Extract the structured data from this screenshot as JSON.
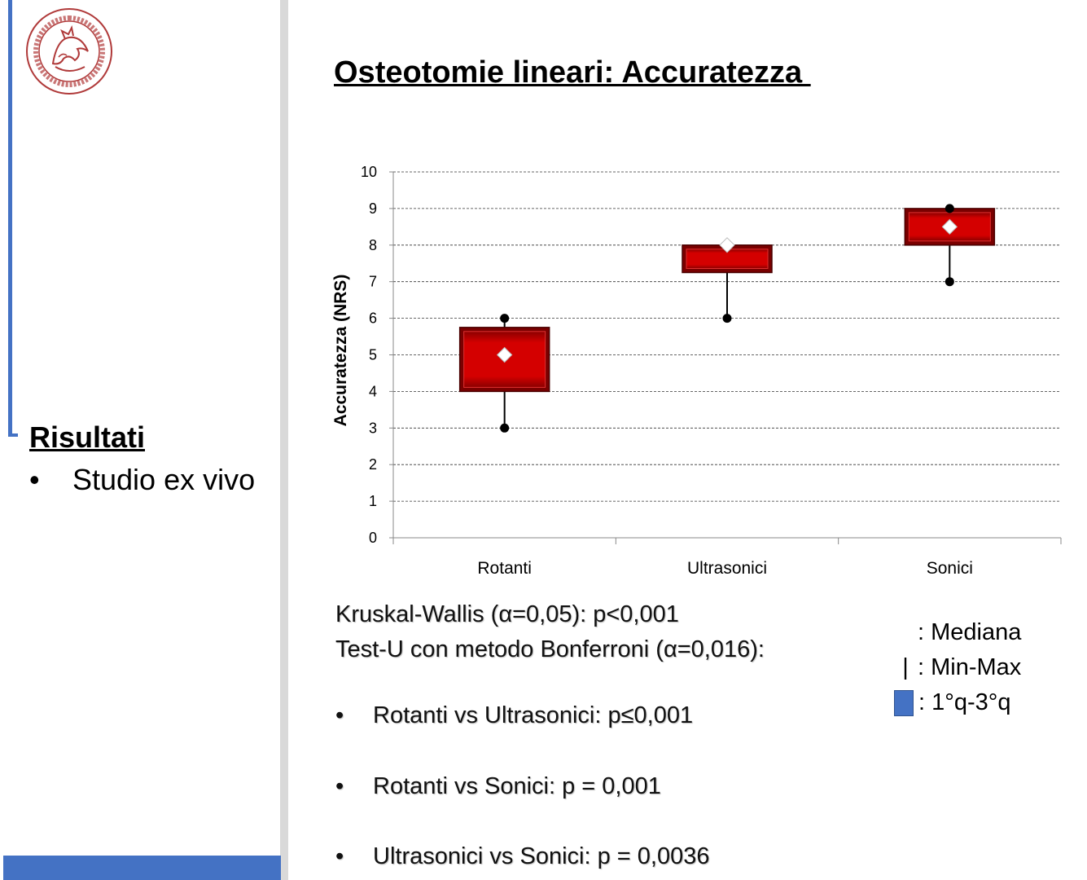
{
  "slide": {
    "title": "Osteotomie lineari: Accuratezza "
  },
  "sidebar": {
    "section_title": "Risultati",
    "bullet": "Studio ex vivo",
    "bullet_symbol": "•",
    "accent_color": "#4472c4"
  },
  "stats": {
    "line1": "Kruskal-Wallis (α=0,05): p<0,001",
    "line2": "Test-U  con metodo Bonferroni (α=0,016):",
    "bullet_symbol": "•",
    "comparisons": [
      "Rotanti vs Ultrasonici: p≤0,001",
      "Rotanti vs Sonici: p = 0,001",
      "Ultrasonici vs Sonici: p = 0,0036"
    ]
  },
  "legend": {
    "median_label": ": Mediana",
    "minmax_symbol": "|",
    "minmax_label": ": Min-Max",
    "quartile_label": ": 1°q-3°q",
    "quartile_color": "#4472c4"
  },
  "chart_data": {
    "type": "boxplot",
    "ylabel": "Accuratezza (NRS)",
    "ylim": [
      0,
      10
    ],
    "yticks": [
      0,
      1,
      2,
      3,
      4,
      5,
      6,
      7,
      8,
      9,
      10
    ],
    "grid": true,
    "categories": [
      "Rotanti",
      "Ultrasonici",
      "Sonici"
    ],
    "boxes": [
      {
        "min": 3,
        "q1": 4,
        "median": 5,
        "q3": 5.75,
        "max": 6
      },
      {
        "min": 6,
        "q1": 7.25,
        "median": 8,
        "q3": 8,
        "max": 8
      },
      {
        "min": 7,
        "q1": 8,
        "median": 8.5,
        "q3": 9,
        "max": 9
      }
    ],
    "box_color": "#c00000",
    "median_marker_color": "#ffffff"
  }
}
